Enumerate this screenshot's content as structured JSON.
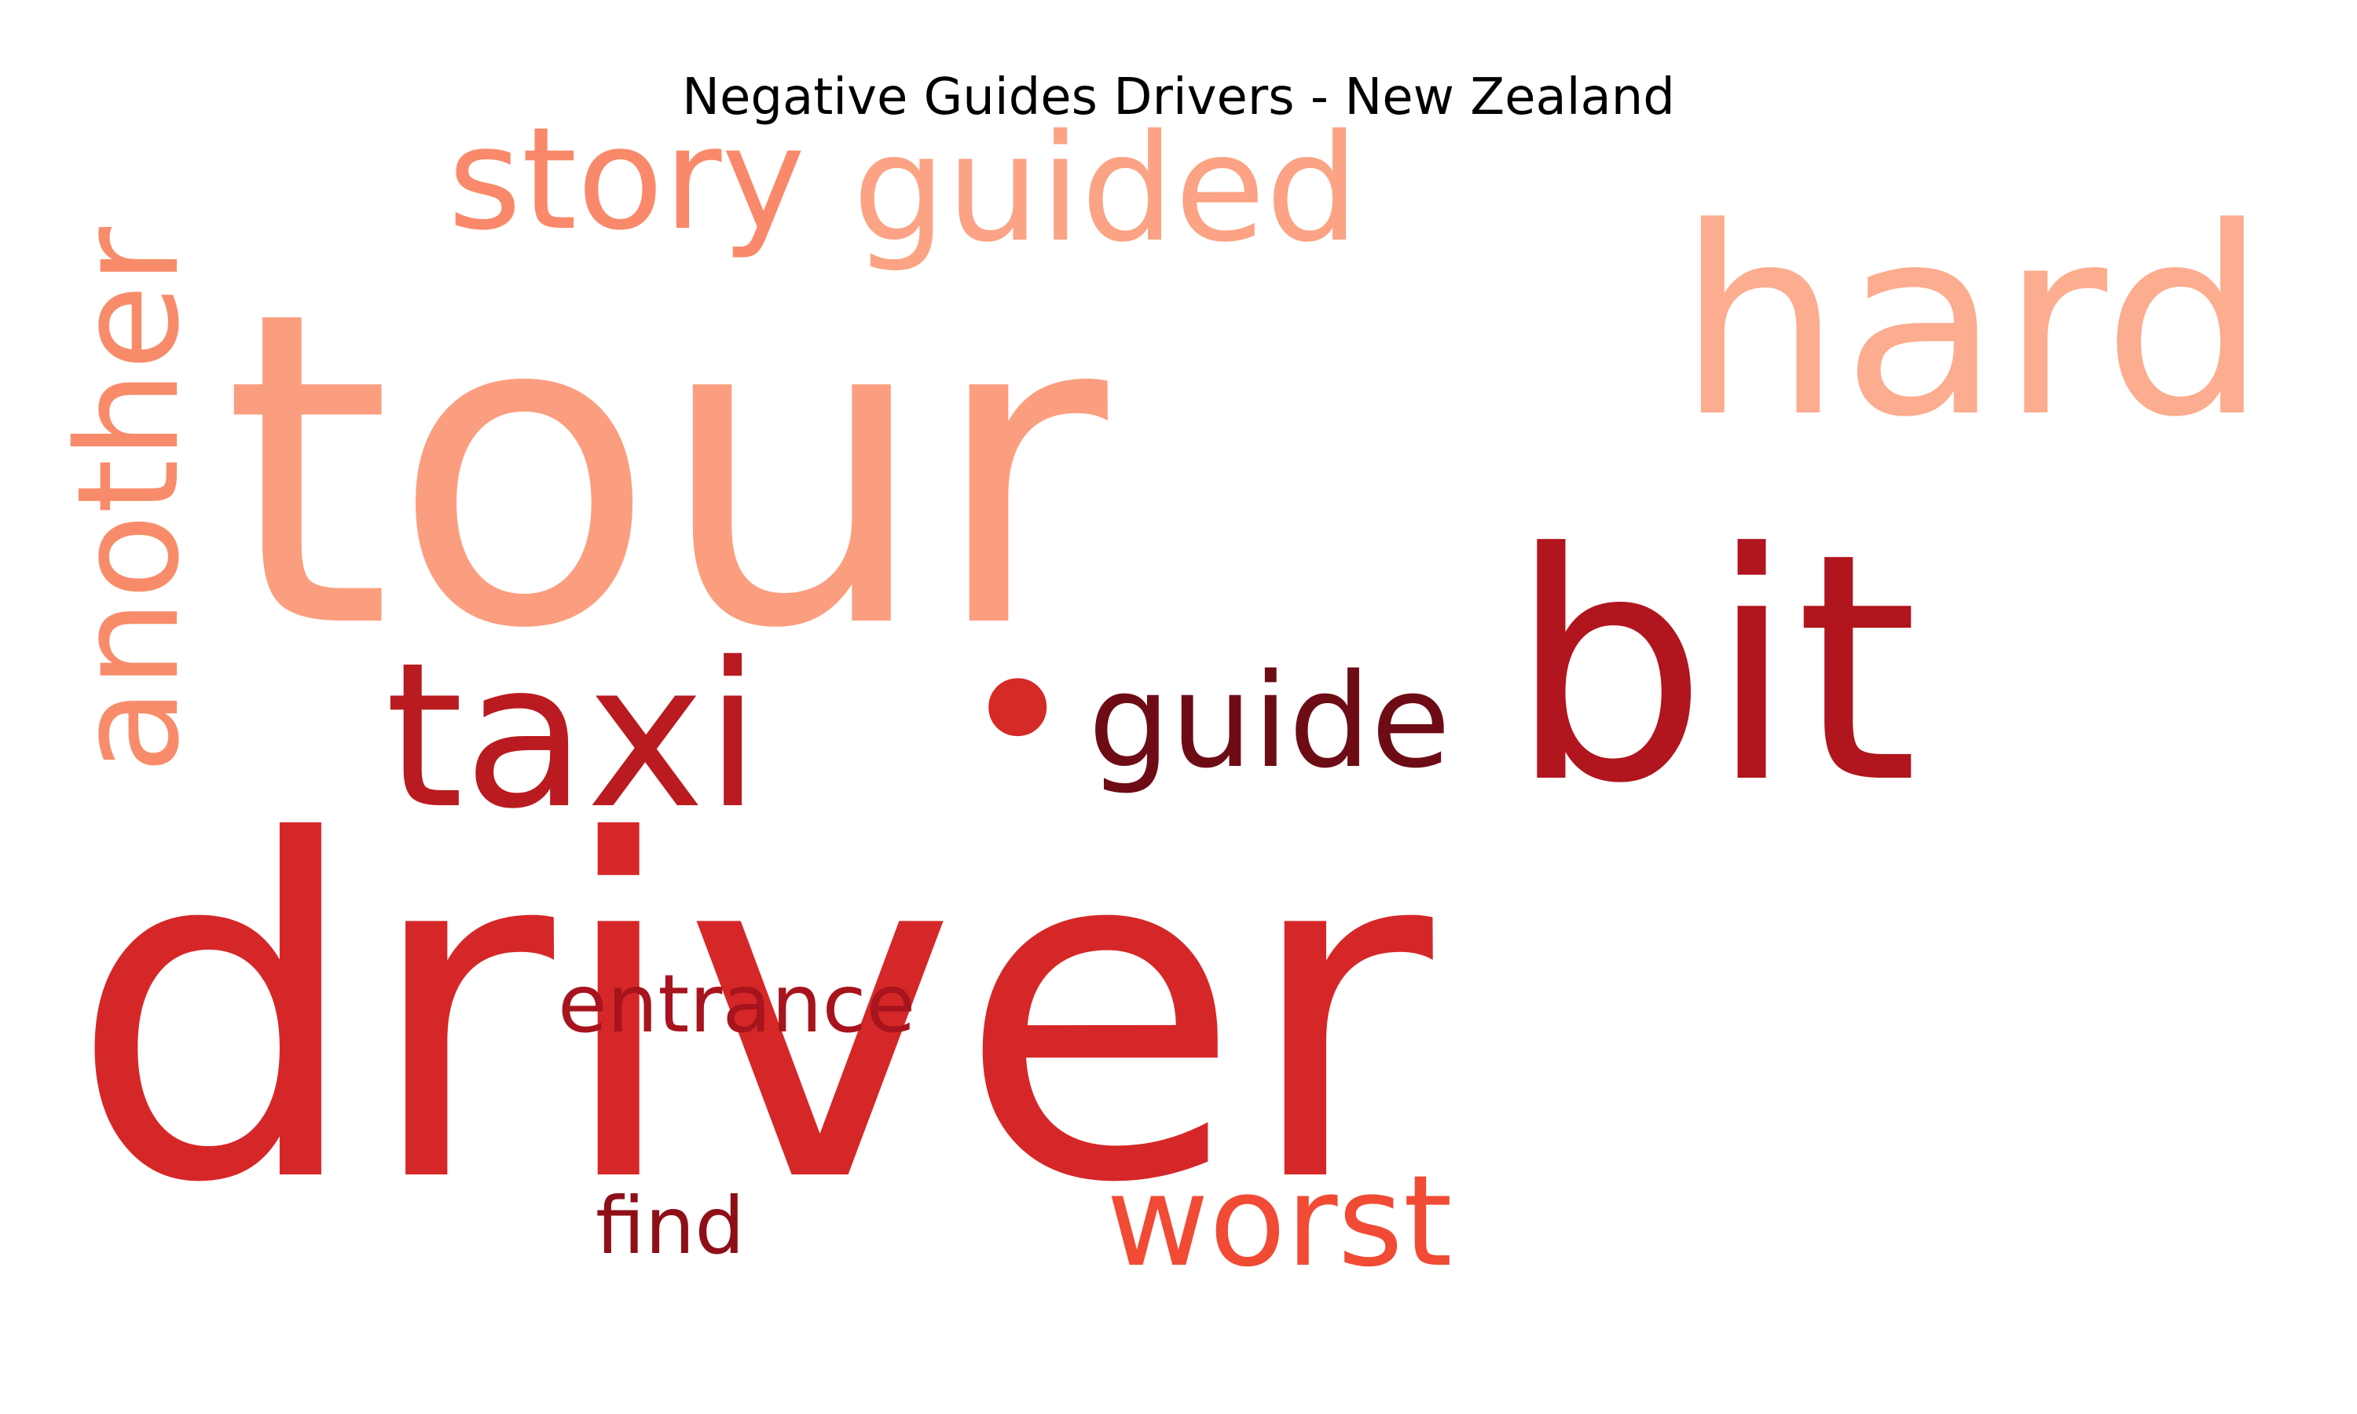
{
  "title": "Negative Guides Drivers - New Zealand",
  "words": [
    {
      "text": "driver",
      "color": "#d62728",
      "orientation": "horizontal"
    },
    {
      "text": "tour",
      "color": "#fb9e7f",
      "orientation": "horizontal"
    },
    {
      "text": "bit",
      "color": "#b1151d",
      "orientation": "horizontal"
    },
    {
      "text": "hard",
      "color": "#fcac8f",
      "orientation": "horizontal"
    },
    {
      "text": "taxi",
      "color": "#b91b20",
      "orientation": "horizontal"
    },
    {
      "text": "guided",
      "color": "#fba384",
      "orientation": "horizontal"
    },
    {
      "text": "story",
      "color": "#f9896a",
      "orientation": "horizontal"
    },
    {
      "text": "another",
      "color": "#f88c6a",
      "orientation": "vertical"
    },
    {
      "text": "guide",
      "color": "#6e0c16",
      "orientation": "horizontal"
    },
    {
      "text": "worst",
      "color": "#f14a35",
      "orientation": "horizontal"
    },
    {
      "text": "entrance",
      "color": "#a7141d",
      "orientation": "horizontal"
    },
    {
      "text": "find",
      "color": "#8e0f18",
      "orientation": "horizontal"
    },
    {
      "text": "•",
      "color": "#d62a26",
      "orientation": "horizontal"
    }
  ]
}
